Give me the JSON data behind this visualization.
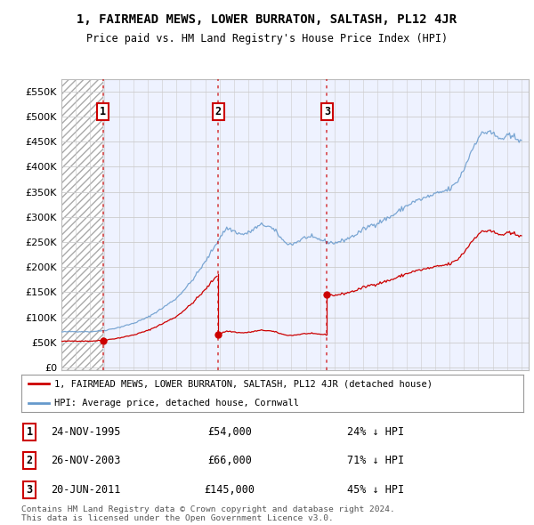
{
  "title": "1, FAIRMEAD MEWS, LOWER BURRATON, SALTASH, PL12 4JR",
  "subtitle": "Price paid vs. HM Land Registry's House Price Index (HPI)",
  "ylabel_ticks": [
    0,
    50000,
    100000,
    150000,
    200000,
    250000,
    300000,
    350000,
    400000,
    450000,
    500000,
    550000
  ],
  "ylabel_labels": [
    "£0",
    "£50K",
    "£100K",
    "£150K",
    "£200K",
    "£250K",
    "£300K",
    "£350K",
    "£400K",
    "£450K",
    "£500K",
    "£550K"
  ],
  "xlim": [
    1993.0,
    2025.5
  ],
  "ylim": [
    -5000,
    575000
  ],
  "sales": [
    {
      "num": 1,
      "date": "24-NOV-1995",
      "price": 54000,
      "year": 1995.9,
      "pct": "24%",
      "dir": "↓"
    },
    {
      "num": 2,
      "date": "26-NOV-2003",
      "price": 66000,
      "year": 2003.9,
      "pct": "71%",
      "dir": "↓"
    },
    {
      "num": 3,
      "date": "20-JUN-2011",
      "price": 145000,
      "year": 2011.47,
      "pct": "45%",
      "dir": "↓"
    }
  ],
  "legend_line1": "1, FAIRMEAD MEWS, LOWER BURRATON, SALTASH, PL12 4JR (detached house)",
  "legend_line2": "HPI: Average price, detached house, Cornwall",
  "footnote": "Contains HM Land Registry data © Crown copyright and database right 2024.\nThis data is licensed under the Open Government Licence v3.0.",
  "red_color": "#cc0000",
  "blue_color": "#6699cc",
  "grid_color": "#cccccc",
  "bg_color": "#ffffff",
  "plot_bg": "#eef2ff"
}
